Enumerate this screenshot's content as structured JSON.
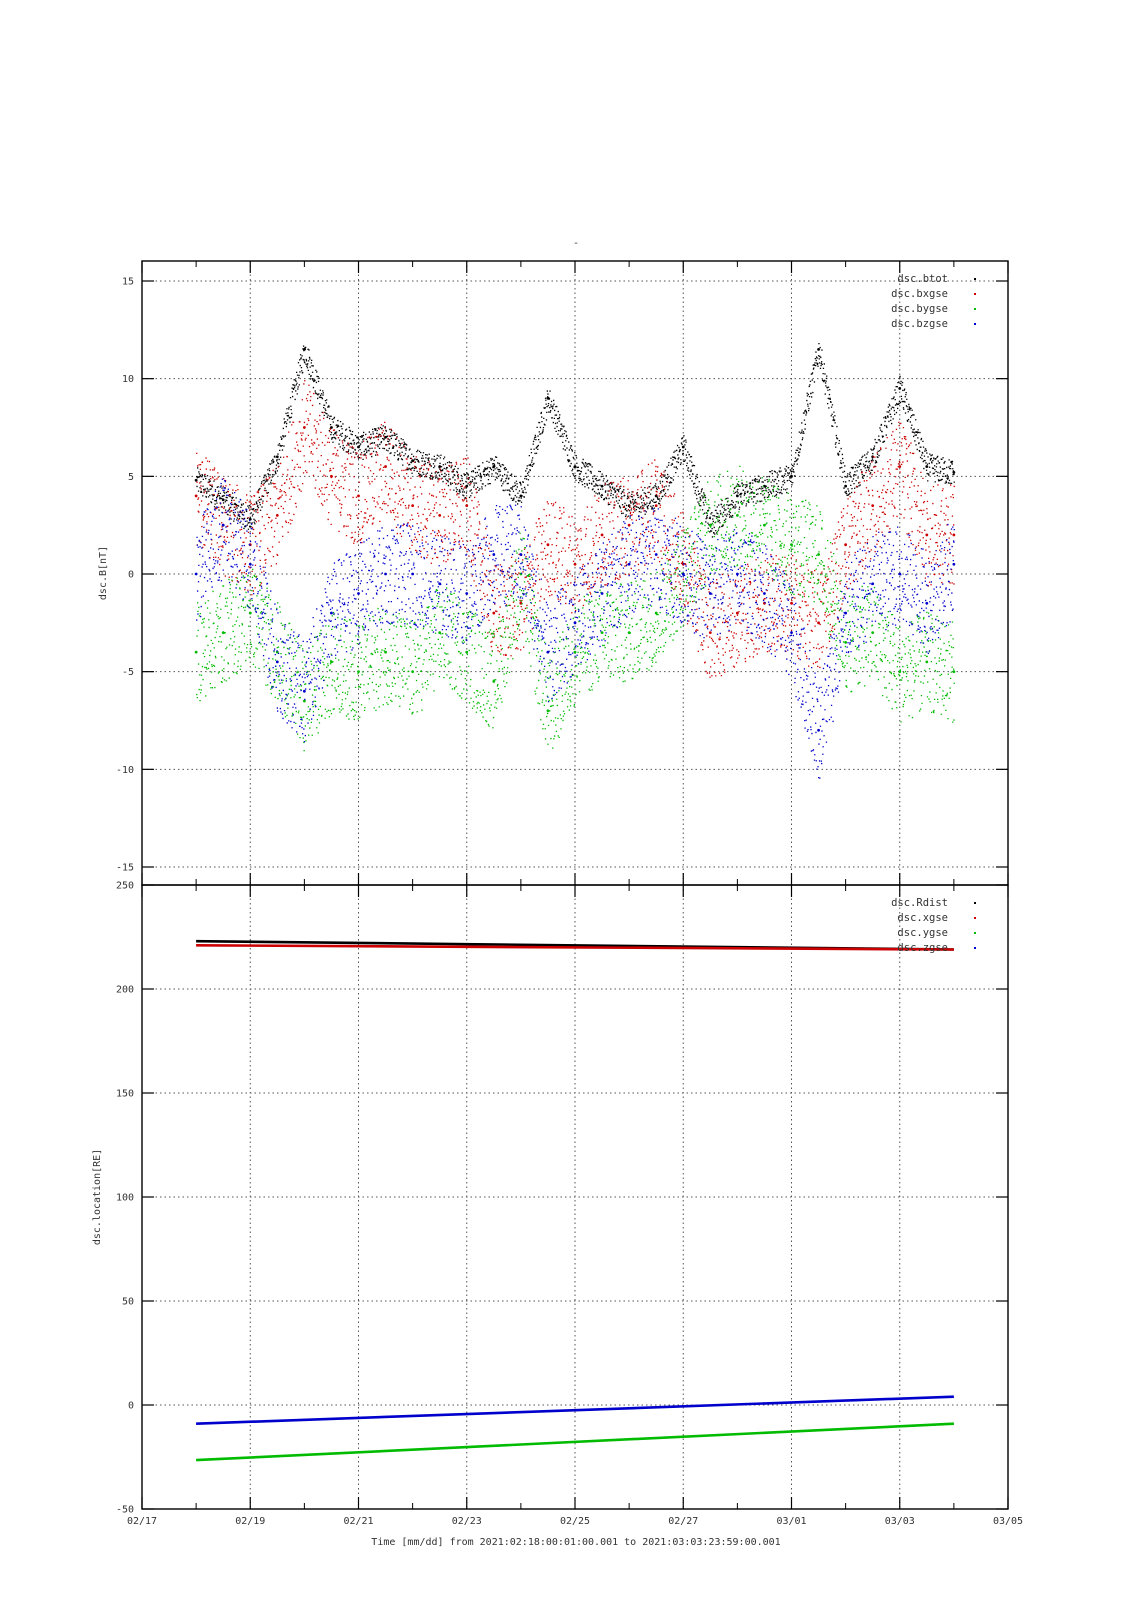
{
  "figure": {
    "title": "-",
    "xlabel": "Time [mm/dd]  from 2021:02:18:00:01:00.001  to  2021:03:03:23:59:00.001"
  },
  "chart_data": [
    {
      "type": "scatter",
      "title": "",
      "xlabel": "",
      "ylabel": "dsc.B[nT]",
      "xlim": [
        "02/17",
        "03/05"
      ],
      "ylim": [
        -15,
        15
      ],
      "xticks": [
        "02/17",
        "02/19",
        "02/21",
        "02/23",
        "02/25",
        "02/27",
        "03/01",
        "03/03",
        "03/05"
      ],
      "yticks": [
        "15",
        "10",
        "5",
        "0",
        "-5",
        "-10",
        "-15"
      ],
      "grid": true,
      "legend_position": "top-right",
      "x": [
        "02/18",
        "02/18.5",
        "02/19",
        "02/19.5",
        "02/20",
        "02/20.5",
        "02/21",
        "02/21.5",
        "02/22",
        "02/22.5",
        "02/23",
        "02/23.5",
        "02/24",
        "02/24.5",
        "02/25",
        "02/25.5",
        "02/26",
        "02/26.5",
        "02/27",
        "02/27.5",
        "02/28",
        "02/28.5",
        "03/01",
        "03/01.5",
        "03/02",
        "03/02.5",
        "03/03",
        "03/03.5",
        "03/04"
      ],
      "series": [
        {
          "name": "dsc.btot",
          "color": "#000000",
          "values": [
            4.8,
            3.8,
            2.8,
            6.0,
            11.5,
            7.5,
            6.5,
            7.0,
            5.8,
            5.5,
            4.5,
            5.5,
            4.0,
            9.0,
            5.5,
            4.5,
            3.5,
            4.0,
            6.5,
            2.5,
            4.0,
            4.5,
            5.0,
            11.5,
            4.5,
            6.0,
            9.5,
            5.5,
            5.2
          ]
        },
        {
          "name": "dsc.bxgse",
          "color": "#cc0000",
          "values": [
            4.0,
            2.5,
            1.5,
            3.0,
            7.5,
            5.0,
            4.0,
            5.5,
            3.5,
            3.0,
            3.5,
            -2.0,
            -1.5,
            1.5,
            0.5,
            2.0,
            2.5,
            3.5,
            0.5,
            -3.0,
            -2.0,
            -1.5,
            -1.5,
            -2.5,
            1.5,
            3.5,
            5.5,
            2.0,
            2.0
          ]
        },
        {
          "name": "dsc.bygse",
          "color": "#00bb00",
          "values": [
            -4.0,
            -3.0,
            -2.0,
            -4.0,
            -6.5,
            -4.5,
            -5.0,
            -4.0,
            -5.0,
            -3.0,
            -4.0,
            -5.5,
            0.0,
            -7.0,
            -4.0,
            -3.0,
            -3.0,
            -2.0,
            0.0,
            2.5,
            3.0,
            2.5,
            1.5,
            1.0,
            -3.5,
            -3.0,
            -5.0,
            -4.5,
            -5.0
          ]
        },
        {
          "name": "dsc.bzgse",
          "color": "#0000cc",
          "values": [
            0.0,
            2.5,
            0.5,
            -4.5,
            -6.0,
            -2.0,
            -1.0,
            0.0,
            0.0,
            -0.5,
            -1.0,
            1.0,
            1.0,
            -4.0,
            -2.5,
            -1.0,
            0.5,
            1.0,
            0.0,
            -1.0,
            0.0,
            -1.0,
            -3.0,
            -8.0,
            -2.0,
            -0.5,
            0.0,
            -1.5,
            0.5
          ]
        }
      ]
    },
    {
      "type": "line",
      "title": "",
      "xlabel": "",
      "ylabel": "dsc.location[RE]",
      "xlim": [
        "02/17",
        "03/05"
      ],
      "ylim": [
        -50,
        250
      ],
      "xticks": [
        "02/17",
        "02/19",
        "02/21",
        "02/23",
        "02/25",
        "02/27",
        "03/01",
        "03/03",
        "03/05"
      ],
      "yticks": [
        "250",
        "200",
        "150",
        "100",
        "50",
        "0",
        "-50"
      ],
      "grid": true,
      "legend_position": "top-right",
      "x": [
        "02/18",
        "03/04"
      ],
      "series": [
        {
          "name": "dsc.Rdist",
          "color": "#000000",
          "values": [
            223,
            219
          ]
        },
        {
          "name": "dsc.xgse",
          "color": "#cc0000",
          "values": [
            221,
            219
          ]
        },
        {
          "name": "dsc.ygse",
          "color": "#00bb00",
          "values": [
            -26.5,
            -9
          ]
        },
        {
          "name": "dsc.zgse",
          "color": "#0000cc",
          "values": [
            -9,
            4
          ]
        }
      ]
    }
  ]
}
